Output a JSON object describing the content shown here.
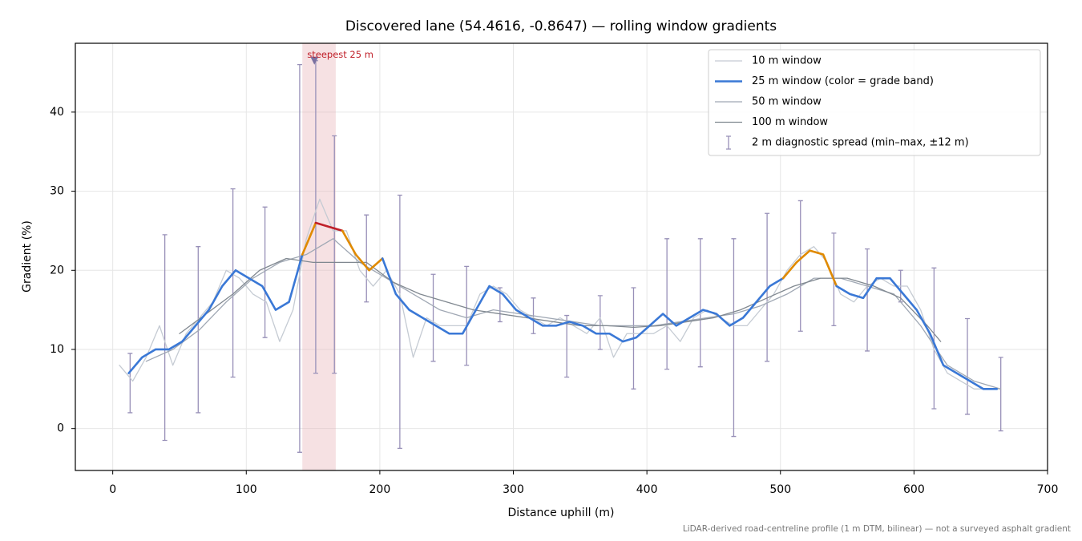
{
  "chart_data": {
    "type": "line",
    "title": "Discovered lane (54.4616, -0.8647) — rolling window gradients",
    "x_label": "Distance uphill (m)",
    "y_label": "Gradient (%)",
    "footnote": "LiDAR-derived road-centreline profile (1 m DTM, bilinear) — not a surveyed asphalt gradient",
    "xlim": [
      -28,
      700
    ],
    "ylim": [
      -5.3,
      48.7
    ],
    "xticks": [
      0,
      100,
      200,
      300,
      400,
      500,
      600,
      700
    ],
    "yticks": [
      0,
      10,
      20,
      30,
      40
    ],
    "grid": true,
    "legend": "upper right",
    "highlight": {
      "x": [
        142,
        167
      ],
      "color": "#e8b4b8"
    },
    "annotation": {
      "text": "steepest 25 m",
      "x": 151,
      "y": 46.5,
      "color": "#c0202a"
    },
    "series": [
      {
        "name": "10 m window",
        "color": "#c5cbd3",
        "width": 1.3,
        "x": [
          5,
          15,
          25,
          35,
          45,
          55,
          65,
          75,
          85,
          95,
          105,
          115,
          125,
          135,
          145,
          155,
          165,
          175,
          185,
          195,
          205,
          215,
          225,
          235,
          245,
          255,
          265,
          275,
          285,
          295,
          305,
          315,
          325,
          335,
          345,
          355,
          365,
          375,
          385,
          395,
          405,
          415,
          425,
          435,
          445,
          455,
          465,
          475,
          485,
          495,
          505,
          515,
          525,
          535,
          545,
          555,
          565,
          575,
          585,
          595,
          605,
          615,
          625,
          635,
          645,
          655,
          665
        ],
        "values": [
          8,
          6,
          9,
          13,
          8,
          12,
          14,
          16,
          20,
          19,
          17,
          16,
          11,
          15,
          24,
          29,
          25,
          25,
          20,
          18,
          20,
          17,
          9,
          14,
          13,
          13,
          13,
          17,
          18,
          17,
          15,
          14,
          13,
          14,
          13,
          12,
          14,
          9,
          12,
          12,
          12,
          13,
          11,
          14,
          15,
          14,
          13,
          13,
          15,
          17,
          20,
          22,
          23,
          21,
          17,
          16,
          18,
          19,
          18,
          18,
          15,
          10,
          7,
          6,
          5,
          5,
          5
        ]
      },
      {
        "name": "25 m window (color = grade band)",
        "color": "#3a78d6",
        "width": 2.6,
        "band_edges": [
          20,
          25
        ],
        "band_colors": [
          "#3a78d6",
          "#e08a00",
          "#c0202a"
        ],
        "x": [
          12,
          22,
          32,
          42,
          52,
          62,
          72,
          82,
          92,
          102,
          112,
          122,
          132,
          142,
          152,
          162,
          172,
          182,
          192,
          202,
          212,
          222,
          232,
          242,
          252,
          262,
          272,
          282,
          292,
          302,
          312,
          322,
          332,
          342,
          352,
          362,
          372,
          382,
          392,
          402,
          412,
          422,
          432,
          442,
          452,
          462,
          472,
          482,
          492,
          502,
          512,
          522,
          532,
          542,
          552,
          562,
          572,
          582,
          592,
          602,
          612,
          622,
          632,
          642,
          652,
          662
        ],
        "values": [
          7,
          9,
          10,
          10,
          11,
          13,
          15,
          18,
          20,
          19,
          18,
          15,
          16,
          22,
          26,
          25.5,
          25,
          22,
          20,
          21.5,
          17,
          15,
          14,
          13,
          12,
          12,
          15,
          18,
          17,
          15,
          14,
          13,
          13,
          13.5,
          13,
          12,
          12,
          11,
          11.5,
          13,
          14.5,
          13,
          14,
          15,
          14.5,
          13,
          14,
          16,
          18,
          19,
          21,
          22.5,
          22,
          18,
          17,
          16.5,
          19,
          19,
          17,
          15,
          12,
          8,
          7,
          6,
          5,
          5
        ]
      },
      {
        "name": "50 m window",
        "color": "#a0a8b4",
        "width": 1.3,
        "x": [
          25,
          45,
          65,
          85,
          105,
          125,
          145,
          165,
          185,
          205,
          225,
          245,
          265,
          285,
          305,
          325,
          345,
          365,
          385,
          405,
          425,
          445,
          465,
          485,
          505,
          525,
          545,
          565,
          585,
          605,
          625,
          645,
          665
        ],
        "values": [
          8.5,
          10,
          12.5,
          16,
          19,
          21,
          22,
          24,
          21,
          19,
          17,
          15,
          14,
          15,
          14.5,
          14,
          13.5,
          13,
          13,
          13,
          13.5,
          14,
          14.5,
          15.5,
          17,
          19,
          19,
          18,
          17,
          13,
          8,
          6,
          5
        ]
      },
      {
        "name": "100 m window",
        "color": "#808890",
        "width": 1.3,
        "x": [
          50,
          70,
          90,
          110,
          130,
          150,
          170,
          190,
          210,
          230,
          250,
          270,
          290,
          310,
          330,
          350,
          370,
          390,
          410,
          430,
          450,
          470,
          490,
          510,
          530,
          550,
          570,
          590,
          610,
          620
        ],
        "values": [
          12,
          14.5,
          17,
          20,
          21.5,
          21,
          21,
          21,
          18.5,
          17,
          16,
          15,
          14.5,
          14,
          13.5,
          13,
          13,
          12.8,
          13,
          13.5,
          14,
          15,
          16.5,
          18,
          19,
          19,
          18,
          16.5,
          13,
          11
        ]
      }
    ],
    "spread": {
      "name": "2 m diagnostic spread (min–max, ±12 m)",
      "color": "#9890b8",
      "x": [
        13,
        39,
        64,
        90,
        114,
        140,
        152,
        166,
        190,
        215,
        240,
        265,
        290,
        315,
        340,
        365,
        390,
        415,
        440,
        465,
        490,
        515,
        540,
        565,
        590,
        615,
        640,
        665
      ],
      "low": [
        2,
        -1.5,
        2,
        6.5,
        11.5,
        -3,
        7,
        7,
        16,
        -2.5,
        8.5,
        8,
        13.5,
        12,
        6.5,
        10,
        5,
        7.5,
        7.8,
        -1,
        8.5,
        12.3,
        13,
        9.8,
        16,
        2.5,
        1.8,
        -0.3
      ],
      "high": [
        9.5,
        24.5,
        23,
        30.3,
        28,
        46,
        46.5,
        37,
        27,
        29.5,
        19.5,
        20.5,
        17.8,
        16.5,
        14.3,
        16.8,
        17.8,
        24,
        24,
        24,
        27.2,
        28.8,
        24.7,
        22.7,
        20,
        20.3,
        13.9,
        9
      ]
    }
  }
}
